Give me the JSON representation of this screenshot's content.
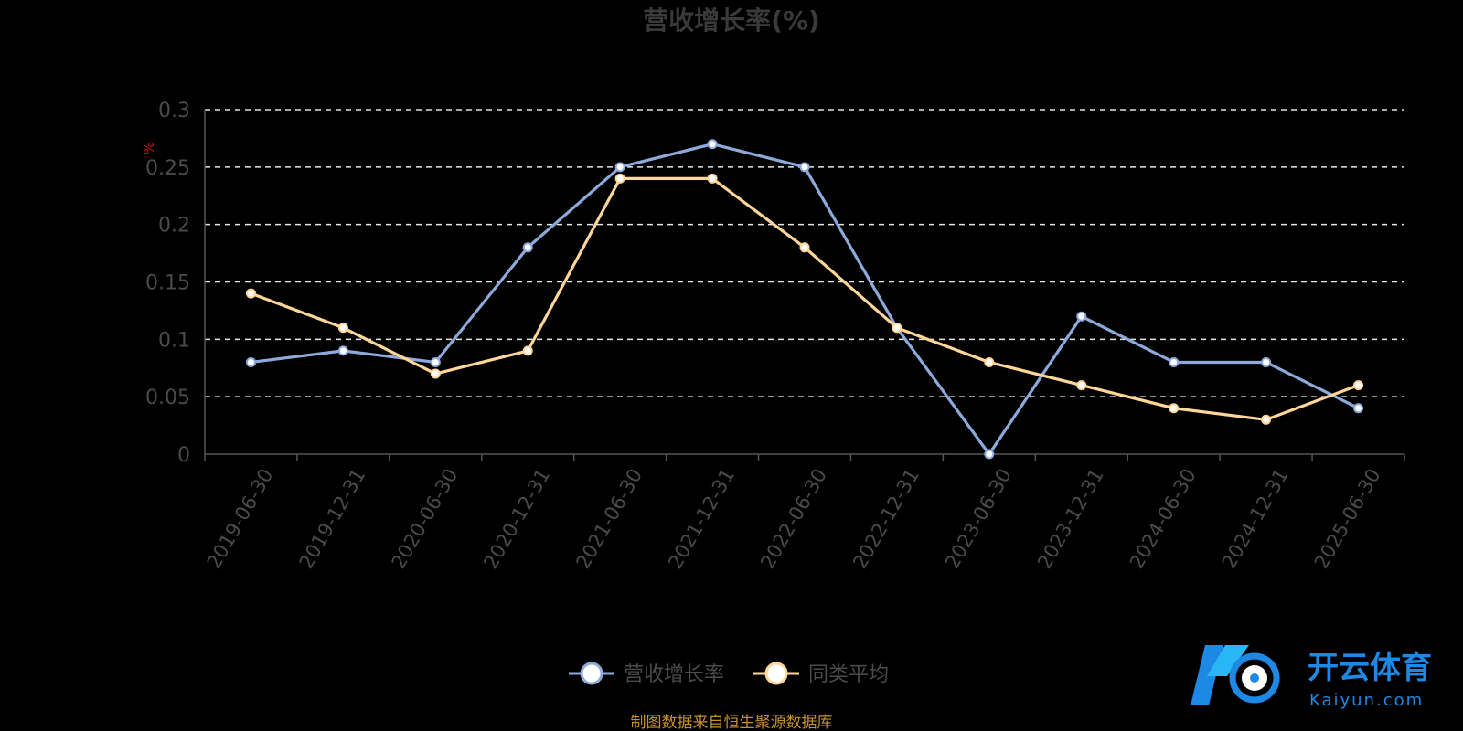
{
  "chart_data": {
    "type": "line",
    "title": "营收增长率(%)",
    "unit": "%",
    "categories": [
      "2019-06-30",
      "2019-12-31",
      "2020-06-30",
      "2020-12-31",
      "2021-06-30",
      "2021-12-31",
      "2022-06-30",
      "2022-12-31",
      "2023-06-30",
      "2023-12-31",
      "2024-06-30",
      "2024-12-31",
      "2025-06-30"
    ],
    "ylim": [
      0,
      0.3
    ],
    "yticks": [
      "0",
      "0.05",
      "0.1",
      "0.15",
      "0.2",
      "0.25",
      "0.3"
    ],
    "grid": true,
    "legend_position": "bottom",
    "series": [
      {
        "name": "营收增长率",
        "color": "#8eaadb",
        "values": [
          0.08,
          0.09,
          0.08,
          0.18,
          0.25,
          0.27,
          0.25,
          0.11,
          0.0,
          0.12,
          0.08,
          0.08,
          0.04
        ]
      },
      {
        "name": "同类平均",
        "color": "#ffd699",
        "values": [
          0.14,
          0.11,
          0.07,
          0.09,
          0.24,
          0.24,
          0.18,
          0.11,
          0.08,
          0.06,
          0.04,
          0.03,
          0.06
        ]
      }
    ]
  },
  "source_note": "制图数据来自恒生聚源数据库",
  "watermark": {
    "name": "开云体育",
    "domain": "Kaiyun.com",
    "color": "#1e88e5"
  }
}
